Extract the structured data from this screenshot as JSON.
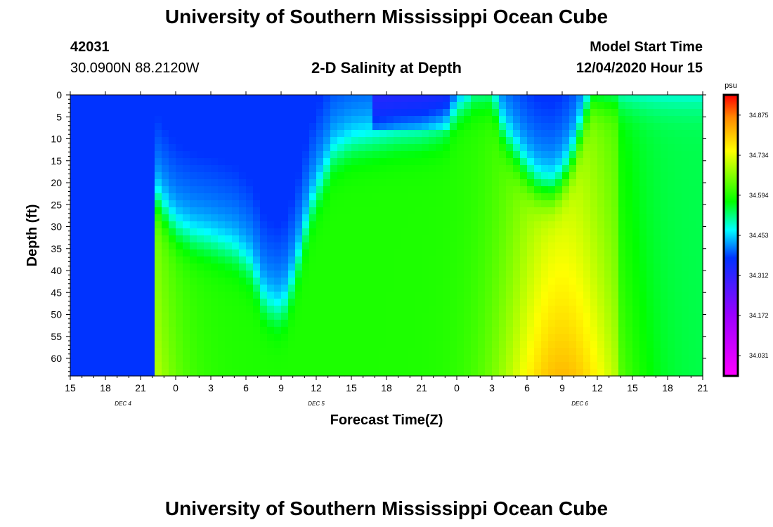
{
  "header": {
    "title": "University of Southern Mississippi Ocean Cube",
    "station_id": "42031",
    "location": "30.0900N 88.2120W",
    "model_start_label": "Model Start Time",
    "model_start_value": "12/04/2020 Hour 15"
  },
  "footer": {
    "title": "University of Southern Mississippi Ocean Cube"
  },
  "colors": {
    "background": "#ffffff",
    "text": "#000000"
  },
  "chart_data": {
    "type": "heatmap",
    "title": "2-D Salinity at Depth",
    "xlabel": "Forecast Time(Z)",
    "ylabel": "Depth (ft)",
    "x_tick_labels": [
      "15",
      "18",
      "21",
      "0",
      "3",
      "6",
      "9",
      "12",
      "15",
      "18",
      "21",
      "0",
      "3",
      "6",
      "9",
      "12",
      "15",
      "18",
      "21"
    ],
    "x_range_hours": [
      0,
      54
    ],
    "date_labels": [
      {
        "text": "DEC 4",
        "hour": 4.5
      },
      {
        "text": "DEC 5",
        "hour": 21
      },
      {
        "text": "DEC 6",
        "hour": 43.5
      }
    ],
    "y_tick_labels": [
      "0",
      "5",
      "10",
      "15",
      "20",
      "25",
      "30",
      "35",
      "40",
      "45",
      "50",
      "55",
      "60"
    ],
    "ylim": [
      0,
      64
    ],
    "colorbar": {
      "unit": "psu",
      "ticks": [
        "34.875",
        "34.734",
        "34.594",
        "34.453",
        "34.312",
        "34.172",
        "34.031"
      ],
      "range": [
        33.96,
        34.946
      ]
    },
    "interface_depth_ft": [
      [
        0,
        90
      ],
      [
        6.9,
        90
      ],
      [
        7.3,
        24
      ],
      [
        8.0,
        27
      ],
      [
        9.0,
        31
      ],
      [
        10.5,
        33
      ],
      [
        12,
        34
      ],
      [
        14,
        36
      ],
      [
        15.5,
        40
      ],
      [
        16.5,
        47
      ],
      [
        17.5,
        50
      ],
      [
        18.5,
        48
      ],
      [
        19.5,
        38
      ],
      [
        20.5,
        27
      ],
      [
        21.5,
        20
      ],
      [
        22.5,
        14
      ],
      [
        24,
        11.5
      ],
      [
        26,
        10.5
      ],
      [
        28,
        9.5
      ],
      [
        30,
        9
      ],
      [
        32,
        7.5
      ],
      [
        33,
        2
      ],
      [
        34,
        0
      ],
      [
        36,
        0
      ],
      [
        37,
        9
      ],
      [
        39,
        18
      ],
      [
        40,
        21
      ],
      [
        41,
        22
      ],
      [
        42,
        20
      ],
      [
        43,
        14
      ],
      [
        44.5,
        0
      ],
      [
        54,
        0
      ]
    ]
  }
}
